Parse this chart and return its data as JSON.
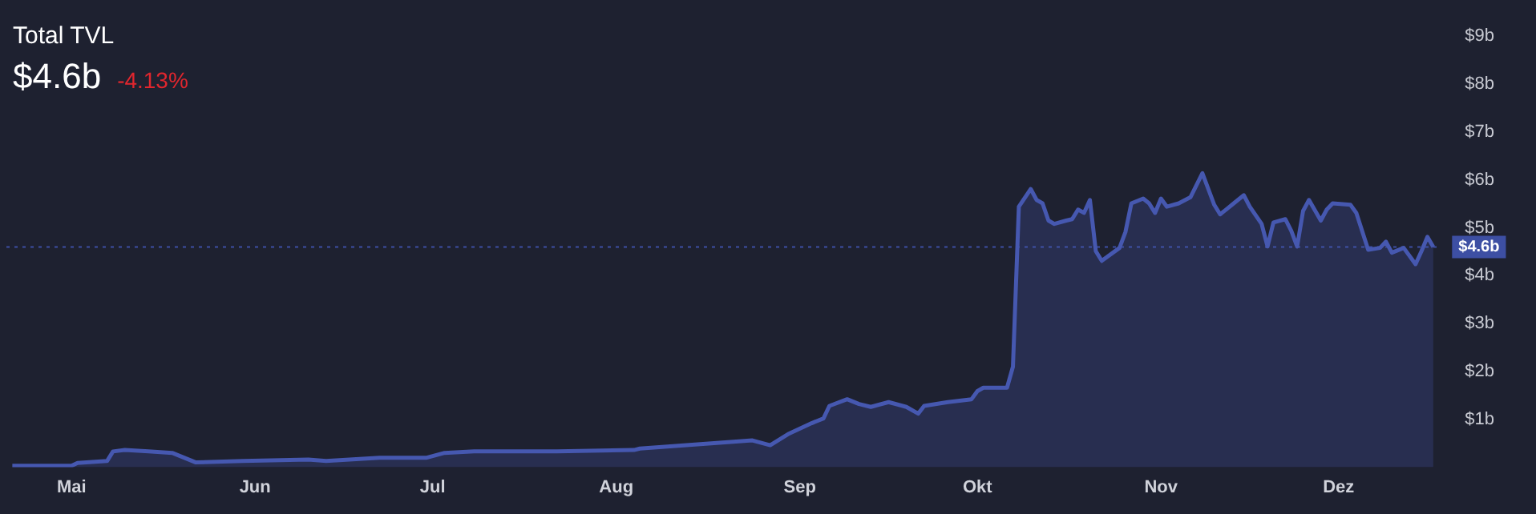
{
  "chart_data": {
    "type": "area",
    "title": "Total TVL",
    "subtitle": "$4.6b",
    "annotations": [
      "-4.13%"
    ],
    "x": [
      "--04-21",
      "--05-01",
      "--05-02",
      "--05-07",
      "--05-08",
      "--05-10",
      "--05-14",
      "--05-18",
      "--05-22",
      "--05-30",
      "--06-10",
      "--06-13",
      "--06-22",
      "--06-30",
      "--07-03",
      "--07-08",
      "--07-15",
      "--07-22",
      "--08-04",
      "--08-05",
      "--08-24",
      "--08-27",
      "--08-30",
      "--09-03",
      "--09-05",
      "--09-06",
      "--09-09",
      "--09-11",
      "--09-13",
      "--09-16",
      "--09-19",
      "--09-21",
      "--09-22",
      "--09-26",
      "--09-30",
      "--10-01",
      "--10-02",
      "--10-06",
      "--10-07",
      "--10-08",
      "--10-10",
      "--10-11",
      "--10-12",
      "--10-13",
      "--10-14",
      "--10-16",
      "--10-17",
      "--10-18",
      "--10-19",
      "--10-20",
      "--10-21",
      "--10-22",
      "--10-25",
      "--10-26",
      "--10-27",
      "--10-29",
      "--10-30",
      "--10-31",
      "--11-01",
      "--11-02",
      "--11-04",
      "--11-06",
      "--11-08",
      "--11-10",
      "--11-11",
      "--11-13",
      "--11-15",
      "--11-16",
      "--11-18",
      "--11-19",
      "--11-20",
      "--11-22",
      "--11-23",
      "--11-24",
      "--11-25",
      "--11-26",
      "--11-28",
      "--11-29",
      "--11-30",
      "--12-03",
      "--12-04",
      "--12-06",
      "--12-08",
      "--12-09",
      "--12-10",
      "--12-12",
      "--12-14",
      "--12-15",
      "--12-16",
      "--12-17"
    ],
    "series": [
      {
        "color": "#4658b0",
        "values": [
          0.03,
          0.03,
          0.09,
          0.13,
          0.33,
          0.36,
          0.33,
          0.3,
          0.1,
          0.13,
          0.16,
          0.13,
          0.2,
          0.2,
          0.3,
          0.33,
          0.33,
          0.33,
          0.36,
          0.39,
          0.56,
          0.46,
          0.69,
          0.92,
          1.02,
          1.28,
          1.42,
          1.32,
          1.26,
          1.36,
          1.26,
          1.12,
          1.28,
          1.36,
          1.42,
          1.59,
          1.66,
          1.66,
          2.1,
          5.44,
          5.81,
          5.58,
          5.51,
          5.15,
          5.08,
          5.15,
          5.18,
          5.38,
          5.31,
          5.58,
          4.51,
          4.31,
          4.58,
          4.91,
          5.51,
          5.61,
          5.51,
          5.31,
          5.61,
          5.44,
          5.51,
          5.64,
          6.14,
          5.48,
          5.28,
          5.48,
          5.68,
          5.44,
          5.08,
          4.61,
          5.11,
          5.18,
          4.94,
          4.61,
          5.35,
          5.58,
          5.15,
          5.38,
          5.51,
          5.48,
          5.31,
          4.54,
          4.58,
          4.71,
          4.48,
          4.58,
          4.24,
          4.51,
          4.81,
          4.6
        ]
      }
    ],
    "xlim": [
      "--04-20",
      "--12-18"
    ],
    "xticks": [
      {
        "value": "--05-01",
        "label": "Mai"
      },
      {
        "value": "--06-01",
        "label": "Jun"
      },
      {
        "value": "--07-01",
        "label": "Jul"
      },
      {
        "value": "--08-01",
        "label": "Aug"
      },
      {
        "value": "--09-01",
        "label": "Sep"
      },
      {
        "value": "--10-01",
        "label": "Okt"
      },
      {
        "value": "--11-01",
        "label": "Nov"
      },
      {
        "value": "--12-01",
        "label": "Dez"
      }
    ],
    "ylim": [
      0,
      9
    ],
    "yticks": [
      {
        "value": 1,
        "label": "$1b"
      },
      {
        "value": 2,
        "label": "$2b"
      },
      {
        "value": 3,
        "label": "$3b"
      },
      {
        "value": 4,
        "label": "$4b"
      },
      {
        "value": 5,
        "label": "$5b"
      },
      {
        "value": 6,
        "label": "$6b"
      },
      {
        "value": 7,
        "label": "$7b"
      },
      {
        "value": 8,
        "label": "$8b"
      },
      {
        "value": 9,
        "label": "$9b"
      }
    ],
    "ref_lines": [
      {
        "axis": "y",
        "value": 4.6,
        "label": "$4.6b",
        "color": "#3d4fa3",
        "line_style": "dotted"
      }
    ],
    "grid": false,
    "legend": false
  }
}
